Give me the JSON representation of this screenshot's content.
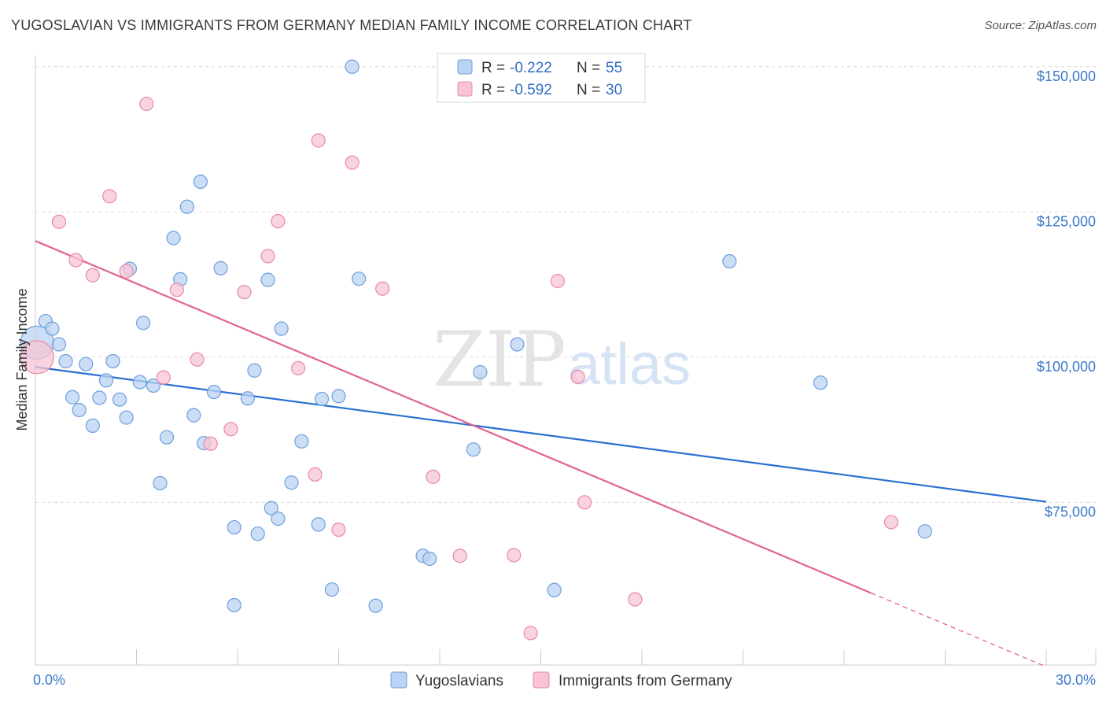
{
  "title": "YUGOSLAVIAN VS IMMIGRANTS FROM GERMANY MEDIAN FAMILY INCOME CORRELATION CHART",
  "source": "Source: ZipAtlas.com",
  "watermark": {
    "zip": "ZIP",
    "atlas": "atlas"
  },
  "colors": {
    "blue_fill": "#b9d3f2",
    "blue_stroke": "#6e9fdc",
    "blue_line": "#2b6fd1",
    "pink_fill": "#f7c4d4",
    "pink_stroke": "#e889a8",
    "pink_line": "#e0648f",
    "tick_color": "#3b78c8",
    "grid": "#dcdcdc"
  },
  "chart_data": {
    "type": "scatter",
    "title": "YUGOSLAVIAN VS IMMIGRANTS FROM GERMANY MEDIAN FAMILY INCOME CORRELATION CHART",
    "xlabel": "",
    "ylabel": "Median Family Income",
    "xlim": [
      0,
      30
    ],
    "ylim": [
      47000,
      152000
    ],
    "x_ticks": [
      "0.0%",
      "30.0%"
    ],
    "y_ticks": [
      {
        "value": 75000,
        "label": "$75,000"
      },
      {
        "value": 100000,
        "label": "$100,000"
      },
      {
        "value": 125000,
        "label": "$125,000"
      },
      {
        "value": 150000,
        "label": "$150,000"
      }
    ],
    "grid": true,
    "legend": [
      {
        "r_label": "R =",
        "r_value": "-0.222",
        "n_label": "N =",
        "n_value": "55"
      },
      {
        "r_label": "R =",
        "r_value": "-0.592",
        "n_label": "N =",
        "n_value": "30"
      }
    ],
    "series": [
      {
        "name": "Yugoslavians",
        "color": "#b9d3f2",
        "trend": {
          "x0": 0,
          "y0": 98300,
          "x1": 30,
          "y1": 75100,
          "dashed_from": null
        },
        "points": [
          {
            "x": 0.05,
            "y": 102500,
            "big": true
          },
          {
            "x": 0.3,
            "y": 106200
          },
          {
            "x": 0.5,
            "y": 104900
          },
          {
            "x": 0.7,
            "y": 102200
          },
          {
            "x": 0.9,
            "y": 99300
          },
          {
            "x": 1.1,
            "y": 93100
          },
          {
            "x": 1.3,
            "y": 90900
          },
          {
            "x": 1.5,
            "y": 98800
          },
          {
            "x": 1.7,
            "y": 88200
          },
          {
            "x": 1.9,
            "y": 93000
          },
          {
            "x": 2.1,
            "y": 96000
          },
          {
            "x": 2.3,
            "y": 99300
          },
          {
            "x": 2.5,
            "y": 92700
          },
          {
            "x": 2.7,
            "y": 89600
          },
          {
            "x": 2.8,
            "y": 115200
          },
          {
            "x": 3.1,
            "y": 95700
          },
          {
            "x": 3.2,
            "y": 105900
          },
          {
            "x": 3.5,
            "y": 95100
          },
          {
            "x": 3.7,
            "y": 78300
          },
          {
            "x": 3.9,
            "y": 86200
          },
          {
            "x": 4.1,
            "y": 120500
          },
          {
            "x": 4.3,
            "y": 113400
          },
          {
            "x": 4.5,
            "y": 125900
          },
          {
            "x": 4.7,
            "y": 90000
          },
          {
            "x": 4.9,
            "y": 130200
          },
          {
            "x": 5.0,
            "y": 85200
          },
          {
            "x": 5.3,
            "y": 94000
          },
          {
            "x": 5.5,
            "y": 115300
          },
          {
            "x": 5.9,
            "y": 70700
          },
          {
            "x": 5.9,
            "y": 57300
          },
          {
            "x": 6.3,
            "y": 92900
          },
          {
            "x": 6.5,
            "y": 97700
          },
          {
            "x": 6.6,
            "y": 69600
          },
          {
            "x": 6.9,
            "y": 113300
          },
          {
            "x": 7.0,
            "y": 74000
          },
          {
            "x": 7.2,
            "y": 72200
          },
          {
            "x": 7.3,
            "y": 104900
          },
          {
            "x": 7.6,
            "y": 78400
          },
          {
            "x": 7.9,
            "y": 85500
          },
          {
            "x": 8.4,
            "y": 71200
          },
          {
            "x": 8.8,
            "y": 60000
          },
          {
            "x": 8.5,
            "y": 92800
          },
          {
            "x": 9.0,
            "y": 93300
          },
          {
            "x": 9.4,
            "y": 150000
          },
          {
            "x": 9.6,
            "y": 113500
          },
          {
            "x": 10.1,
            "y": 57200
          },
          {
            "x": 11.5,
            "y": 65800
          },
          {
            "x": 11.7,
            "y": 65300
          },
          {
            "x": 13.0,
            "y": 84100
          },
          {
            "x": 13.2,
            "y": 97400
          },
          {
            "x": 14.3,
            "y": 102200
          },
          {
            "x": 15.4,
            "y": 59900
          },
          {
            "x": 20.6,
            "y": 116500
          },
          {
            "x": 23.3,
            "y": 95600
          },
          {
            "x": 26.4,
            "y": 70000
          }
        ]
      },
      {
        "name": "Immigrants from Germany",
        "color": "#f7c4d4",
        "trend": {
          "x0": 0,
          "y0": 120000,
          "x1": 24.8,
          "y1": 59400,
          "dash_x1": 30,
          "dash_y1": 46700
        },
        "points": [
          {
            "x": 0.05,
            "y": 100000,
            "big": true
          },
          {
            "x": 0.7,
            "y": 123300
          },
          {
            "x": 1.2,
            "y": 116700
          },
          {
            "x": 1.7,
            "y": 114100
          },
          {
            "x": 2.2,
            "y": 127700
          },
          {
            "x": 2.7,
            "y": 114800
          },
          {
            "x": 3.3,
            "y": 143600
          },
          {
            "x": 3.8,
            "y": 96500
          },
          {
            "x": 4.2,
            "y": 111600
          },
          {
            "x": 4.8,
            "y": 99600
          },
          {
            "x": 5.2,
            "y": 85100
          },
          {
            "x": 5.8,
            "y": 87600
          },
          {
            "x": 6.2,
            "y": 111200
          },
          {
            "x": 6.9,
            "y": 117400
          },
          {
            "x": 7.2,
            "y": 123400
          },
          {
            "x": 7.8,
            "y": 98100
          },
          {
            "x": 8.3,
            "y": 79800
          },
          {
            "x": 8.4,
            "y": 137300
          },
          {
            "x": 9.0,
            "y": 70300
          },
          {
            "x": 9.4,
            "y": 133500
          },
          {
            "x": 10.3,
            "y": 111800
          },
          {
            "x": 11.8,
            "y": 79400
          },
          {
            "x": 12.6,
            "y": 65800
          },
          {
            "x": 14.2,
            "y": 65900
          },
          {
            "x": 14.7,
            "y": 52500
          },
          {
            "x": 15.5,
            "y": 113100
          },
          {
            "x": 16.1,
            "y": 96600
          },
          {
            "x": 16.3,
            "y": 75000
          },
          {
            "x": 17.8,
            "y": 58300
          },
          {
            "x": 25.4,
            "y": 71600
          }
        ]
      }
    ]
  }
}
